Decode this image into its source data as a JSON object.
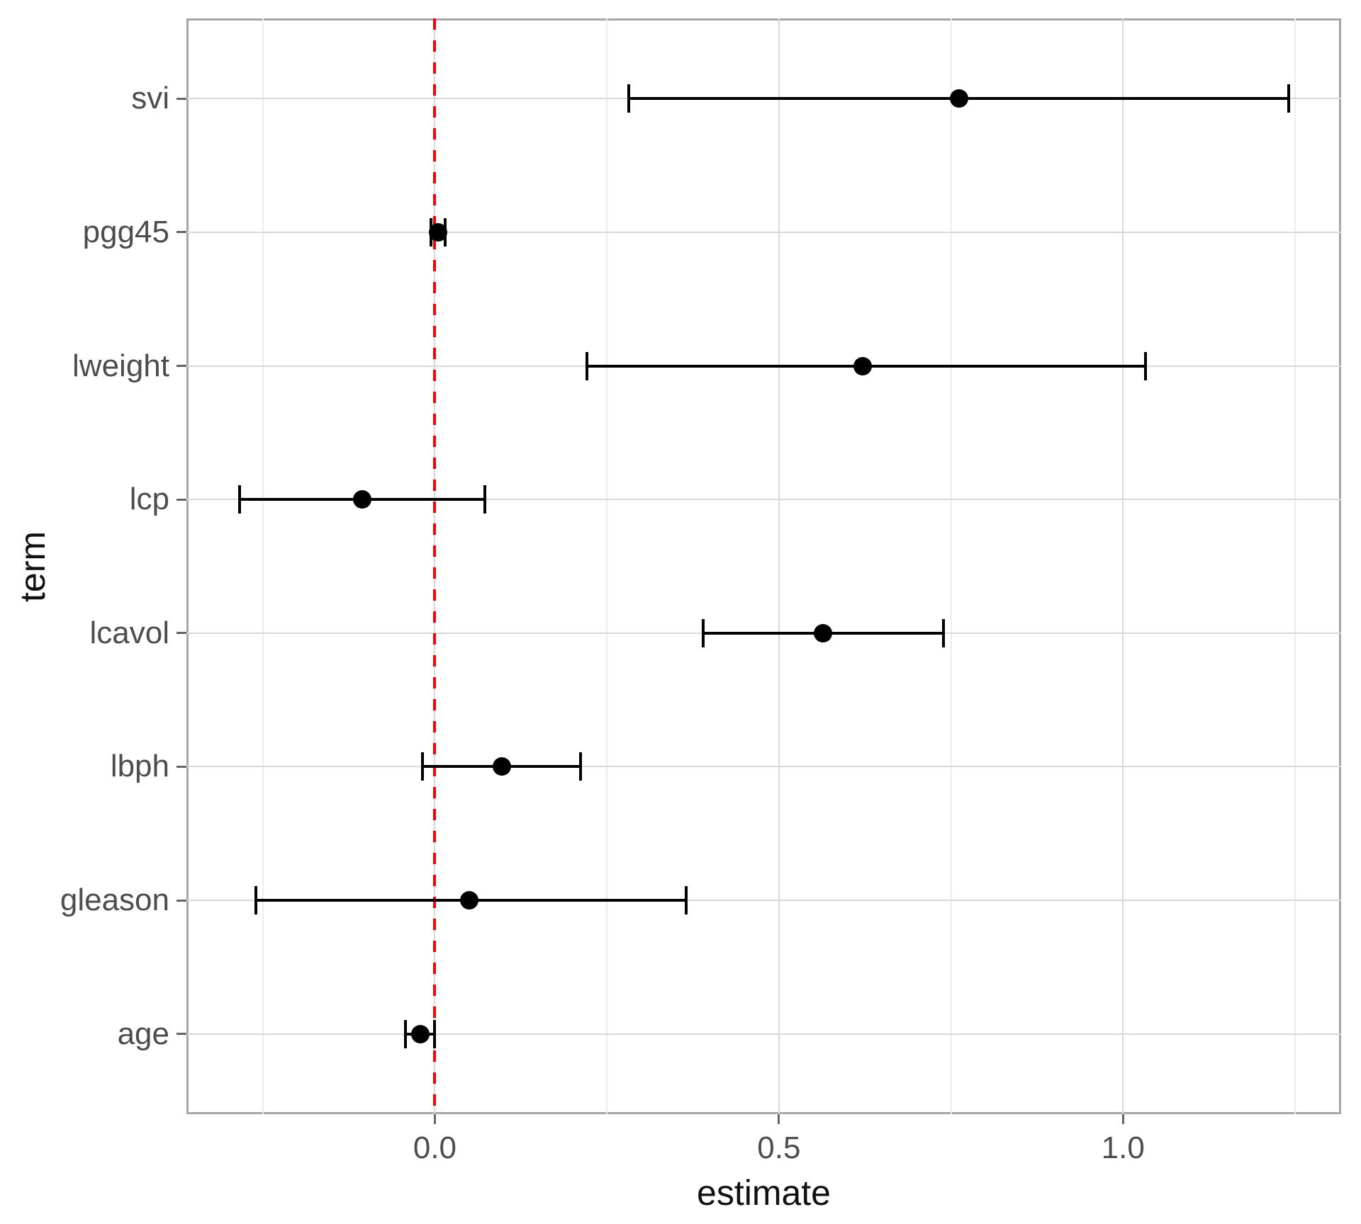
{
  "chart_data": {
    "type": "scatter",
    "subtype": "pointrange-forest-plot",
    "title": "",
    "xlabel": "estimate",
    "ylabel": "term",
    "legend_position": "none",
    "grid": true,
    "categories_top_to_bottom": [
      "svi",
      "pgg45",
      "lweight",
      "lcp",
      "lcavol",
      "lbph",
      "gleason",
      "age"
    ],
    "points": [
      {
        "term": "svi",
        "estimate": 0.762,
        "conf_low": 0.282,
        "conf_high": 1.241
      },
      {
        "term": "pgg45",
        "estimate": 0.005,
        "conf_low": -0.006,
        "conf_high": 0.015
      },
      {
        "term": "lweight",
        "estimate": 0.622,
        "conf_low": 0.221,
        "conf_high": 1.033
      },
      {
        "term": "lcp",
        "estimate": -0.106,
        "conf_low": -0.284,
        "conf_high": 0.073
      },
      {
        "term": "lcavol",
        "estimate": 0.564,
        "conf_low": 0.39,
        "conf_high": 0.739
      },
      {
        "term": "lbph",
        "estimate": 0.097,
        "conf_low": -0.018,
        "conf_high": 0.212
      },
      {
        "term": "gleason",
        "estimate": 0.05,
        "conf_low": -0.26,
        "conf_high": 0.365
      },
      {
        "term": "age",
        "estimate": -0.021,
        "conf_low": -0.043,
        "conf_high": 0.0
      }
    ],
    "x_axis": {
      "range": [
        -0.361,
        1.317
      ],
      "major_ticks": [
        {
          "value": 0.0,
          "label": "0.0"
        },
        {
          "value": 0.5,
          "label": "0.5"
        },
        {
          "value": 1.0,
          "label": "1.0"
        }
      ],
      "minor_ticks": [
        -0.25,
        0.25,
        0.75,
        1.25
      ]
    },
    "reference_line": {
      "value": 0.0,
      "style": "dashed",
      "color": "#FF0000"
    },
    "colors": {
      "point": "#000000",
      "errorbar": "#000000",
      "grid_major": "#D9D9D9",
      "grid_minor": "#EDEDED",
      "panel_border": "#A6A6A6",
      "axis_text": "#4D4D4D",
      "axis_title": "#111111",
      "background": "#FFFFFF"
    }
  }
}
